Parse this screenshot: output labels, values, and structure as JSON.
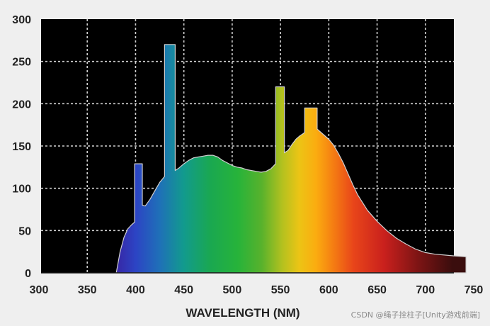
{
  "chart_data": {
    "type": "area",
    "xlabel": "WAVELENGTH (NM)",
    "ylabel": "",
    "title": "",
    "xlim": [
      300,
      745
    ],
    "ylim": [
      0,
      300
    ],
    "xticks": [
      300,
      350,
      400,
      450,
      500,
      550,
      600,
      650,
      700,
      750
    ],
    "yticks": [
      0,
      50,
      100,
      150,
      200,
      250,
      300
    ],
    "grid": true,
    "background_color": "#000000",
    "fill": "visible-spectrum gradient",
    "outline_color": "#cfcfcf",
    "series": [
      {
        "x": [
          380,
          384,
          388,
          392,
          396,
          399,
          399,
          407,
          407,
          410,
          415,
          420,
          425,
          430,
          430,
          441,
          441,
          445,
          450,
          455,
          460,
          465,
          470,
          475,
          480,
          485,
          490,
          495,
          500,
          505,
          510,
          515,
          520,
          525,
          530,
          535,
          540,
          545,
          545,
          554,
          554,
          558,
          562,
          566,
          570,
          574,
          575,
          575,
          588,
          588,
          595,
          600,
          605,
          610,
          615,
          620,
          625,
          630,
          640,
          650,
          660,
          670,
          680,
          690,
          700,
          710,
          720,
          730,
          742
        ],
        "y": [
          0,
          25,
          42,
          52,
          57,
          60,
          129,
          129,
          80,
          79,
          87,
          97,
          107,
          114,
          270,
          270,
          121,
          124,
          129,
          133,
          136,
          137,
          138,
          139,
          139,
          137,
          133,
          130,
          127,
          125,
          124,
          122,
          121,
          120,
          119,
          120,
          123,
          129,
          220,
          220,
          142,
          145,
          152,
          158,
          162,
          165,
          166,
          195,
          195,
          170,
          163,
          158,
          151,
          141,
          130,
          117,
          104,
          92,
          74,
          61,
          50,
          41,
          34,
          28,
          24,
          22,
          21,
          20,
          19
        ]
      }
    ]
  },
  "watermark": "CSDN @绳子拴柱子[Unity游戏前端]"
}
